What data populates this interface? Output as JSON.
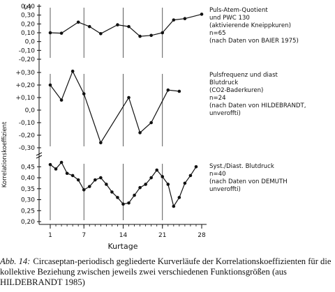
{
  "chart_data": {
    "type": "line",
    "xlabel": "Kurtage",
    "ylabel": "Korrelationskoeffizient",
    "x_ticks": [
      1,
      7,
      14,
      21,
      28
    ],
    "panels": [
      {
        "id": "top",
        "y_unit_label": "(r)",
        "y_ticks": [
          "0,40",
          "0,30",
          "0,20",
          "0,10",
          "0,0",
          "-0,10",
          "-0,20"
        ],
        "ylim": [
          -0.2,
          0.4
        ],
        "annotation": [
          "Puls-Atem-Quotient",
          "und PWC 130",
          "(aktivierende Kneippkuren)",
          "n=65",
          "(nach Daten von BAIER 1975)"
        ],
        "series": [
          {
            "x": [
              1,
              3,
              6,
              8,
              10,
              13,
              15,
              17,
              19,
              21,
              23,
              25,
              28
            ],
            "y": [
              0.1,
              0.095,
              0.22,
              0.17,
              0.09,
              0.19,
              0.17,
              0.06,
              0.07,
              0.1,
              0.245,
              0.26,
              0.31
            ]
          }
        ]
      },
      {
        "id": "middle",
        "y_ticks": [
          "+0,30",
          "+0,20",
          "+0,10",
          "0,0",
          "-0,10",
          "-0,20",
          "-0,30"
        ],
        "ylim": [
          -0.3,
          0.3
        ],
        "annotation": [
          "Pulsfrequenz und diast",
          "Blutdruck",
          "(CO2-Baderkuren)",
          "n=24",
          "(nach Daten von HILDEBRANDT,",
          "unveroffti)"
        ],
        "series": [
          {
            "x": [
              1,
              3,
              5,
              7,
              10,
              15,
              17,
              19,
              22,
              24
            ],
            "y": [
              0.2,
              0.08,
              0.31,
              0.13,
              -0.26,
              0.1,
              -0.18,
              -0.1,
              0.16,
              0.15
            ]
          }
        ]
      },
      {
        "id": "bottom",
        "y_ticks": [
          "0,45",
          "0,40",
          "0,35",
          "0,30",
          "0,25",
          "0,20"
        ],
        "ylim": [
          0.2,
          0.47
        ],
        "annotation": [
          "Syst./Diast. Blutdruck",
          "n=40",
          "(nach Daten von DEMUTH",
          "unveroffti)"
        ],
        "series": [
          {
            "x": [
              1,
              2,
              3,
              4,
              5,
              6,
              7,
              8,
              9,
              10,
              11,
              12,
              13,
              14,
              15,
              16,
              17,
              18,
              19,
              20,
              21,
              22,
              23,
              24,
              25,
              26,
              27
            ],
            "y": [
              0.46,
              0.44,
              0.47,
              0.42,
              0.41,
              0.39,
              0.345,
              0.36,
              0.39,
              0.4,
              0.37,
              0.335,
              0.31,
              0.28,
              0.285,
              0.32,
              0.355,
              0.37,
              0.4,
              0.435,
              0.405,
              0.37,
              0.27,
              0.31,
              0.375,
              0.41,
              0.45
            ]
          }
        ]
      }
    ]
  },
  "caption": {
    "lead": "Abb. 14:",
    "body": "Circaseptan-periodisch gegliederte Kurverläufe der Korrelationskoeffizienten für die kollektive Beziehung zwischen jeweils zwei verschiedenen Funktionsgrößen (aus HILDEBRANDT 1985)"
  }
}
